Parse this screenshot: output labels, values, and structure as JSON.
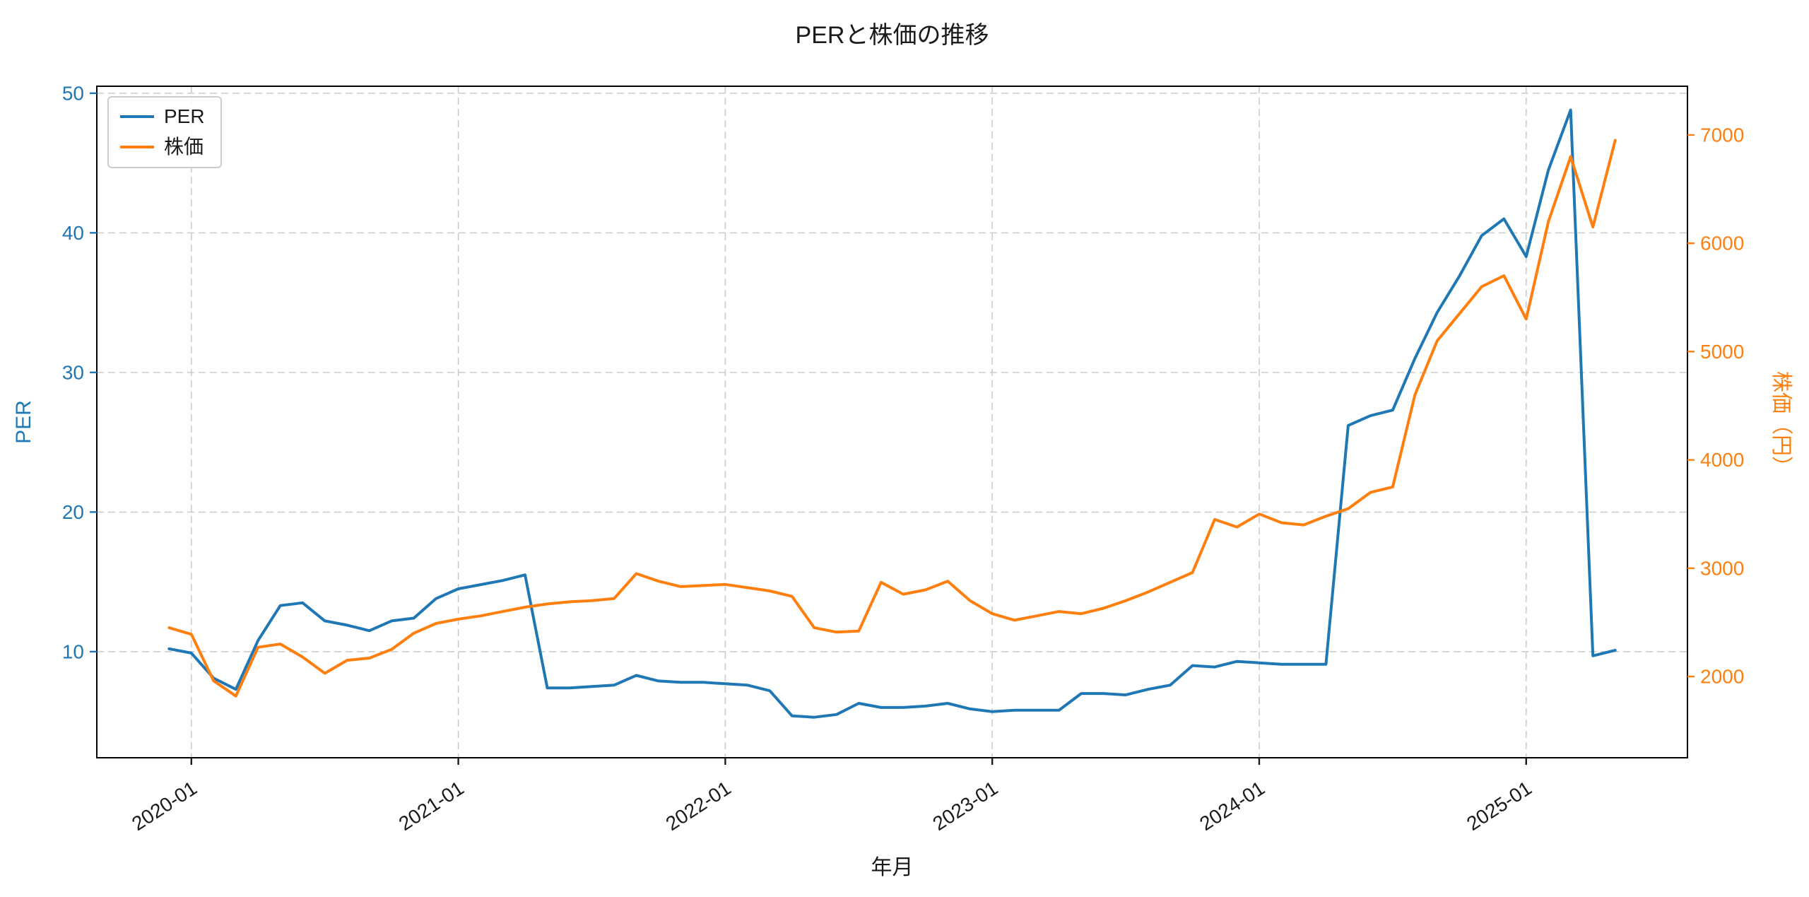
{
  "chart_data": {
    "type": "line",
    "title": "PERと株価の推移",
    "xlabel": "年月",
    "ylabel_left": "PER",
    "ylabel_right": "株価（円）",
    "legend_position": "upper left",
    "grid": "dashed",
    "ylim_left": [
      2.4,
      50.5
    ],
    "ylim_right": [
      1250,
      7450
    ],
    "yticks_left": [
      10,
      20,
      30,
      40,
      50
    ],
    "yticks_right": [
      2000,
      3000,
      4000,
      5000,
      6000,
      7000
    ],
    "xticks": [
      {
        "index": 1,
        "label": "2020-01"
      },
      {
        "index": 13,
        "label": "2021-01"
      },
      {
        "index": 25,
        "label": "2022-01"
      },
      {
        "index": 37,
        "label": "2023-01"
      },
      {
        "index": 49,
        "label": "2024-01"
      },
      {
        "index": 61,
        "label": "2025-01"
      }
    ],
    "colors": {
      "grid": "#cccccc",
      "spine": "#000000",
      "text": "#1a1a1a"
    },
    "x": [
      "2019-12",
      "2020-01",
      "2020-02",
      "2020-03",
      "2020-04",
      "2020-05",
      "2020-06",
      "2020-07",
      "2020-08",
      "2020-09",
      "2020-10",
      "2020-11",
      "2020-12",
      "2021-01",
      "2021-02",
      "2021-03",
      "2021-04",
      "2021-05",
      "2021-06",
      "2021-07",
      "2021-08",
      "2021-09",
      "2021-10",
      "2021-11",
      "2021-12",
      "2022-01",
      "2022-02",
      "2022-03",
      "2022-04",
      "2022-05",
      "2022-06",
      "2022-07",
      "2022-08",
      "2022-09",
      "2022-10",
      "2022-11",
      "2022-12",
      "2023-01",
      "2023-02",
      "2023-03",
      "2023-04",
      "2023-05",
      "2023-06",
      "2023-07",
      "2023-08",
      "2023-09",
      "2023-10",
      "2023-11",
      "2023-12",
      "2024-01",
      "2024-02",
      "2024-03",
      "2024-04",
      "2024-05",
      "2024-06",
      "2024-07",
      "2024-08",
      "2024-09",
      "2024-10",
      "2024-11",
      "2024-12",
      "2025-01",
      "2025-02",
      "2025-03",
      "2025-04",
      "2025-05"
    ],
    "series": [
      {
        "id": "per",
        "name": "PER",
        "axis": "left",
        "color": "#1f77b4",
        "values": [
          10.2,
          9.9,
          8.1,
          7.3,
          10.8,
          13.3,
          13.5,
          12.2,
          11.9,
          11.5,
          12.2,
          12.4,
          13.8,
          14.5,
          14.8,
          15.1,
          15.5,
          7.4,
          7.4,
          7.5,
          7.6,
          8.3,
          7.9,
          7.8,
          7.8,
          7.7,
          7.6,
          7.2,
          5.4,
          5.3,
          5.5,
          6.3,
          6.0,
          6.0,
          6.1,
          6.3,
          5.9,
          5.7,
          5.8,
          5.8,
          5.8,
          7.0,
          7.0,
          6.9,
          7.3,
          7.6,
          9.0,
          8.9,
          9.3,
          9.2,
          9.1,
          9.1,
          9.1,
          26.2,
          26.9,
          27.3,
          31.0,
          34.3,
          36.9,
          39.8,
          41.0,
          38.3,
          44.5,
          48.8,
          9.7,
          10.1
        ]
      },
      {
        "id": "kabuka",
        "name": "株価",
        "axis": "right",
        "color": "#ff7f0e",
        "values": [
          2450,
          2390,
          1960,
          1820,
          2270,
          2300,
          2180,
          2030,
          2150,
          2170,
          2250,
          2400,
          2490,
          2530,
          2560,
          2600,
          2640,
          2670,
          2690,
          2700,
          2720,
          2950,
          2880,
          2830,
          2840,
          2850,
          2820,
          2790,
          2740,
          2450,
          2410,
          2420,
          2870,
          2760,
          2800,
          2880,
          2700,
          2580,
          2520,
          2560,
          2600,
          2580,
          2630,
          2700,
          2780,
          2870,
          2960,
          3450,
          3380,
          3500,
          3420,
          3400,
          3480,
          3550,
          3700,
          3750,
          4600,
          5100,
          5350,
          5600,
          5700,
          5300,
          6200,
          6800,
          6150,
          6950
        ]
      }
    ]
  }
}
